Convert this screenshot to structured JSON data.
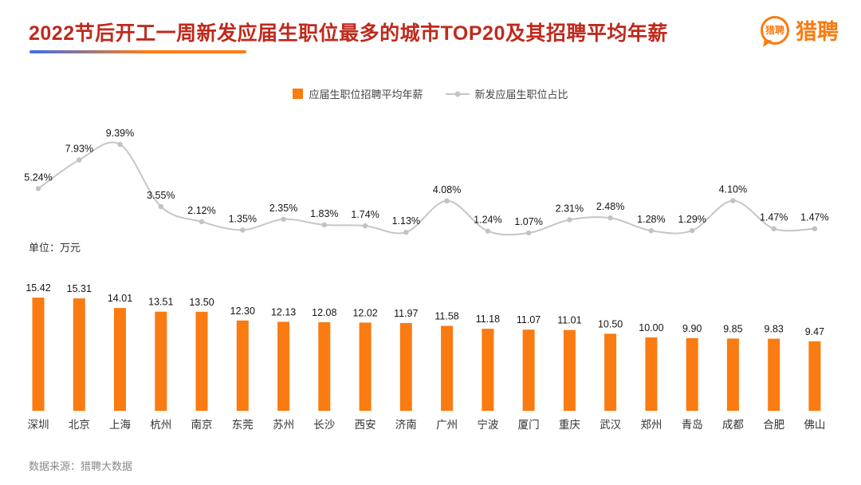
{
  "header": {
    "title": "2022节后开工一周新发应届生职位最多的城市TOP20及其招聘平均年薪",
    "logo_bubble_text": "猎聘",
    "logo_text": "猎聘"
  },
  "legend": {
    "bar_label": "应届生职位招聘平均年薪",
    "line_label": "新发应届生职位占比"
  },
  "unit_label": "单位：万元",
  "source_label": "数据来源：猎聘大数据",
  "colors": {
    "accent_orange": "#f97b11",
    "line_gray": "#c6c6c6",
    "dot_gray": "#c2c2c2",
    "title_red": "#bf2a1d"
  },
  "chart_data": {
    "type": "bar+line",
    "title": "2022节后开工一周新发应届生职位最多的城市TOP20及其招聘平均年薪",
    "categories": [
      "深圳",
      "北京",
      "上海",
      "杭州",
      "南京",
      "东莞",
      "苏州",
      "长沙",
      "西安",
      "济南",
      "广州",
      "宁波",
      "厦门",
      "重庆",
      "武汉",
      "郑州",
      "青岛",
      "成都",
      "合肥",
      "佛山"
    ],
    "series": [
      {
        "name": "应届生职位招聘平均年薪",
        "type": "bar",
        "unit": "万元",
        "values": [
          15.42,
          15.31,
          14.01,
          13.51,
          13.5,
          12.3,
          12.13,
          12.08,
          12.02,
          11.97,
          11.58,
          11.18,
          11.07,
          11.01,
          10.5,
          10.0,
          9.9,
          9.85,
          9.83,
          9.47
        ]
      },
      {
        "name": "新发应届生职位占比",
        "type": "line",
        "unit": "%",
        "values": [
          5.24,
          7.93,
          9.39,
          3.55,
          2.12,
          1.35,
          2.35,
          1.83,
          1.74,
          1.13,
          4.08,
          1.24,
          1.07,
          2.31,
          2.48,
          1.28,
          1.29,
          4.1,
          1.47,
          1.47
        ]
      }
    ],
    "layout_hints": {
      "legend_position": "top-center",
      "grid": false,
      "bar_value_labels": true,
      "line_value_labels": true
    }
  }
}
